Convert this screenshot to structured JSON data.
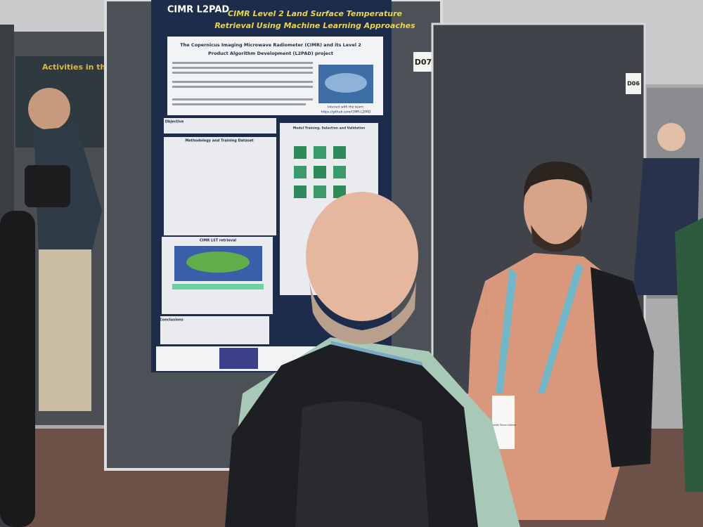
{
  "poster": {
    "logo": "CIMR L2PAD",
    "title_lines": [
      "CIMR Level 2 Land Surface Temperature",
      "Retrieval Using Machine Learning Approaches"
    ],
    "subtitle_lines": [
      "The Copernicus Imaging Microwave Radiometer (CIMR) and its Level 2",
      "Product Algorithm Development (L2PAD) project"
    ],
    "sections": [
      "Objective",
      "Methodology and Training Dataset",
      "Model Training, Selection and Validation",
      "CIMR LST retrieval",
      "Conclusions"
    ],
    "contact": [
      "Interact with the team:",
      "https://github.com/CIMR-L2PAD"
    ]
  },
  "board_labels": [
    "D07",
    "D06"
  ],
  "neighbor_poster": "Activities in the mou",
  "badge": "Andrés Terrer-Gómez"
}
